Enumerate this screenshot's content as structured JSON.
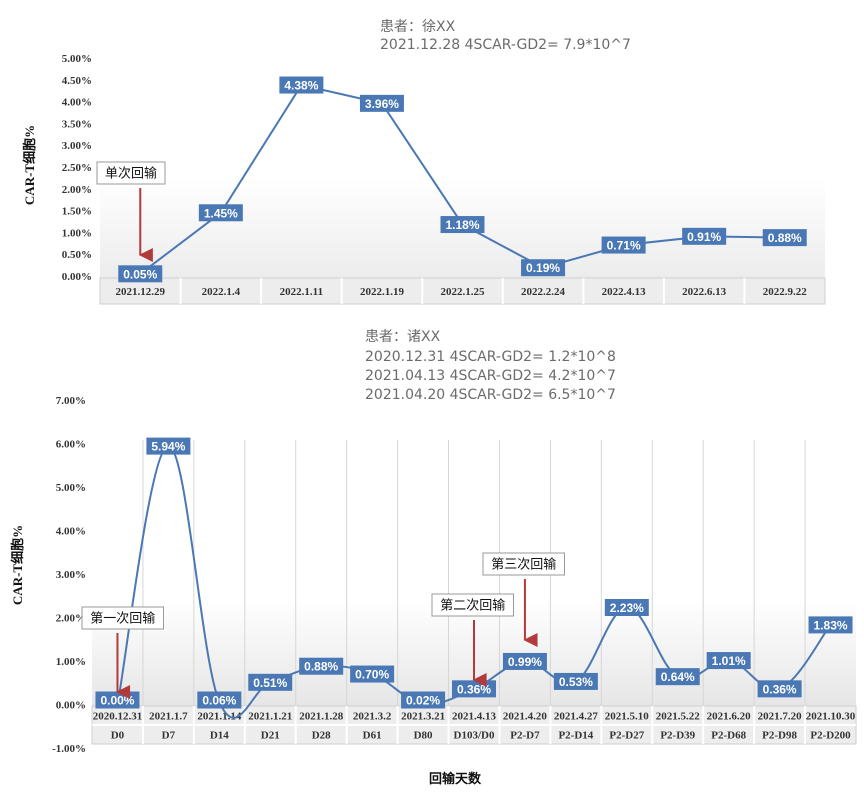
{
  "colors": {
    "line": "#4a78b5",
    "label_bg": "#4a78b5",
    "arrow": "#b33a3a",
    "area_top": "#e9e9e9"
  },
  "chart_data": [
    {
      "type": "line",
      "title_lines": [
        "患者：徐XX",
        "2021.12.28  4SCAR-GD2= 7.9*10^7"
      ],
      "ylabel": "CAR-T细胞%",
      "ylim": [
        0,
        5
      ],
      "yticks": [
        "0.00%",
        "0.50%",
        "1.00%",
        "1.50%",
        "2.00%",
        "2.50%",
        "3.00%",
        "3.50%",
        "4.00%",
        "4.50%",
        "5.00%"
      ],
      "categories": [
        "2021.12.29",
        "2022.1.4",
        "2022.1.11",
        "2022.1.19",
        "2022.1.25",
        "2022.2.24",
        "2022.4.13",
        "2022.6.13",
        "2022.9.22"
      ],
      "values": [
        0.05,
        1.45,
        4.38,
        3.96,
        1.18,
        0.19,
        0.71,
        0.91,
        0.88
      ],
      "labels": [
        "0.05%",
        "1.45%",
        "4.38%",
        "3.96%",
        "1.18%",
        "0.19%",
        "0.71%",
        "0.91%",
        "0.88%"
      ],
      "annotations": [
        {
          "text": "单次回输",
          "index": 0
        }
      ]
    },
    {
      "type": "line",
      "title_lines": [
        "患者：诸XX",
        "2020.12.31 4SCAR-GD2= 1.2*10^8",
        "2021.04.13 4SCAR-GD2= 4.2*10^7",
        "2021.04.20 4SCAR-GD2= 6.5*10^7"
      ],
      "ylabel": "CAR-T细胞%",
      "xlabel": "回输天数",
      "ylim": [
        -1,
        7
      ],
      "yticks": [
        "-1.00%",
        "0.00%",
        "1.00%",
        "2.00%",
        "3.00%",
        "4.00%",
        "5.00%",
        "6.00%",
        "7.00%"
      ],
      "categories": [
        "2020.12.31",
        "2021.1.7",
        "2021.1.14",
        "2021.1.21",
        "2021.1.28",
        "2021.3.2",
        "2021.3.21",
        "2021.4.13",
        "2021.4.20",
        "2021.4.27",
        "2021.5.10",
        "2021.5.22",
        "2021.6.20",
        "2021.7.20",
        "2021.10.30"
      ],
      "days": [
        "D0",
        "D7",
        "D14",
        "D21",
        "D28",
        "D61",
        "D80",
        "D103/D0",
        "P2-D7",
        "P2-D14",
        "P2-D27",
        "P2-D39",
        "P2-D68",
        "P2-D98",
        "P2-D200"
      ],
      "values": [
        0.0,
        5.94,
        0.06,
        0.51,
        0.88,
        0.7,
        0.02,
        0.36,
        0.99,
        0.53,
        2.23,
        0.64,
        1.01,
        0.36,
        1.83
      ],
      "labels": [
        "0.00%",
        "5.94%",
        "0.06%",
        "0.51%",
        "0.88%",
        "0.70%",
        "0.02%",
        "0.36%",
        "0.99%",
        "0.53%",
        "2.23%",
        "0.64%",
        "1.01%",
        "0.36%",
        "1.83%"
      ],
      "annotations": [
        {
          "text": "第一次回输",
          "index": 0
        },
        {
          "text": "第二次回输",
          "index": 7
        },
        {
          "text": "第三次回输",
          "index": 8
        }
      ]
    }
  ]
}
